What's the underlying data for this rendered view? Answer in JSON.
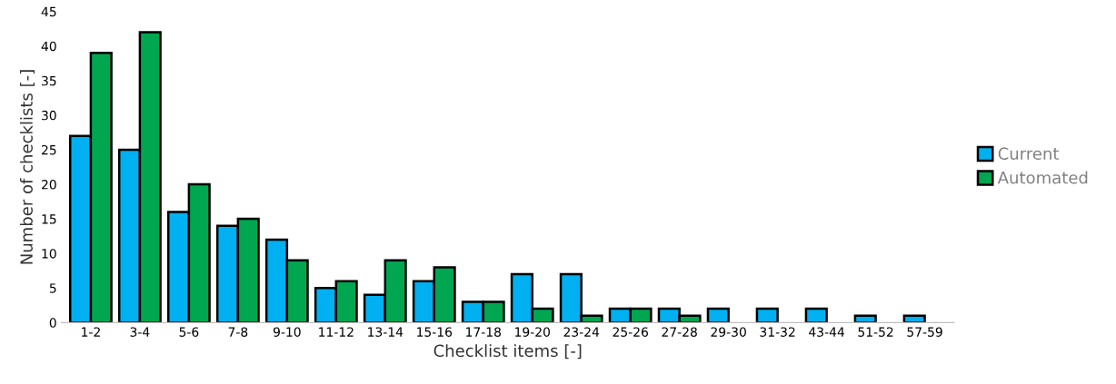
{
  "chart_data": {
    "type": "bar",
    "xlabel": "Checklist items [-]",
    "ylabel": "Number of checklists [-]",
    "categories": [
      "1-2",
      "3-4",
      "5-6",
      "7-8",
      "9-10",
      "11-12",
      "13-14",
      "15-16",
      "17-18",
      "19-20",
      "23-24",
      "25-26",
      "27-28",
      "29-30",
      "31-32",
      "43-44",
      "51-52",
      "57-59"
    ],
    "series": [
      {
        "name": "Current",
        "color": "#00b0f0",
        "values": [
          27,
          25,
          16,
          14,
          12,
          5,
          4,
          6,
          3,
          7,
          7,
          2,
          2,
          2,
          2,
          2,
          1,
          1
        ]
      },
      {
        "name": "Automated",
        "color": "#00a650",
        "values": [
          39,
          42,
          20,
          15,
          9,
          6,
          9,
          8,
          3,
          2,
          1,
          2,
          1,
          null,
          null,
          null,
          null,
          null
        ]
      }
    ],
    "ylim": [
      0,
      45
    ],
    "yticks": [
      0,
      5,
      10,
      15,
      20,
      25,
      30,
      35,
      40,
      45
    ],
    "grid": false,
    "legend": "right"
  }
}
